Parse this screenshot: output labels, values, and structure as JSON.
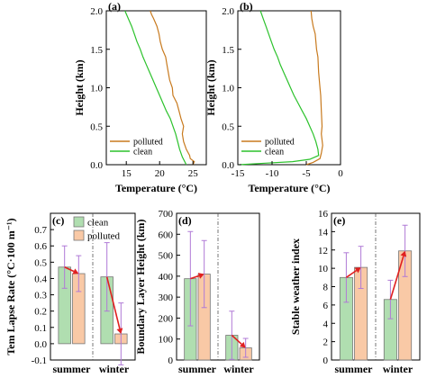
{
  "chart_data": [
    {
      "panel": "(a)",
      "type": "line",
      "xlabel": "Temperature (°C)",
      "ylabel": "Height (km)",
      "xlim": [
        12,
        27
      ],
      "ylim": [
        0,
        2.0
      ],
      "xticks": [
        15,
        20,
        25
      ],
      "yticks": [
        0.0,
        0.5,
        1.0,
        1.5,
        2.0
      ],
      "xtick_labels": [
        "15",
        "20",
        "25"
      ],
      "ytick_labels": [
        "0.0",
        "0.5",
        "1.0",
        "1.5",
        "2.0"
      ],
      "legend": "bottom-left",
      "series": [
        {
          "name": "polluted",
          "color": "#c87a1e",
          "points": [
            [
              25.0,
              0.0
            ],
            [
              25.2,
              0.04
            ],
            [
              24.6,
              0.08
            ],
            [
              24.5,
              0.12
            ],
            [
              24.0,
              0.2
            ],
            [
              23.6,
              0.3
            ],
            [
              23.4,
              0.4
            ],
            [
              23.6,
              0.5
            ],
            [
              23.2,
              0.6
            ],
            [
              22.9,
              0.7
            ],
            [
              22.6,
              0.8
            ],
            [
              22.0,
              0.9
            ],
            [
              21.9,
              1.0
            ],
            [
              21.5,
              1.1
            ],
            [
              21.3,
              1.2
            ],
            [
              21.1,
              1.3
            ],
            [
              20.9,
              1.4
            ],
            [
              20.4,
              1.5
            ],
            [
              20.1,
              1.6
            ],
            [
              19.9,
              1.7
            ],
            [
              19.6,
              1.8
            ],
            [
              19.1,
              1.9
            ],
            [
              18.8,
              1.95
            ],
            [
              18.6,
              2.0
            ]
          ]
        },
        {
          "name": "clean",
          "color": "#2cc22c",
          "points": [
            [
              24.0,
              0.0
            ],
            [
              23.7,
              0.05
            ],
            [
              23.4,
              0.1
            ],
            [
              23.0,
              0.2
            ],
            [
              22.7,
              0.3
            ],
            [
              22.4,
              0.4
            ],
            [
              22.0,
              0.5
            ],
            [
              21.6,
              0.6
            ],
            [
              21.0,
              0.7
            ],
            [
              20.5,
              0.8
            ],
            [
              20.0,
              0.9
            ],
            [
              19.5,
              1.0
            ],
            [
              19.0,
              1.1
            ],
            [
              18.5,
              1.2
            ],
            [
              18.0,
              1.3
            ],
            [
              17.5,
              1.4
            ],
            [
              17.1,
              1.5
            ],
            [
              16.6,
              1.6
            ],
            [
              16.2,
              1.7
            ],
            [
              15.8,
              1.8
            ],
            [
              15.3,
              1.9
            ],
            [
              14.8,
              2.0
            ]
          ]
        }
      ]
    },
    {
      "panel": "(b)",
      "type": "line",
      "xlabel": "Temperature (°C)",
      "ylabel": "Height (km)",
      "xlim": [
        -15,
        0
      ],
      "ylim": [
        0,
        2.0
      ],
      "xticks": [
        -15,
        -10,
        -5,
        0
      ],
      "yticks": [
        0.0,
        0.5,
        1.0,
        1.5,
        2.0
      ],
      "xtick_labels": [
        "-15",
        "-10",
        "-5",
        "0"
      ],
      "ytick_labels": [
        "0.0",
        "0.5",
        "1.0",
        "1.5",
        "2.0"
      ],
      "legend": "bottom-left",
      "series": [
        {
          "name": "polluted",
          "color": "#c87a1e",
          "points": [
            [
              -5.0,
              0.0
            ],
            [
              -4.0,
              0.03
            ],
            [
              -3.0,
              0.08
            ],
            [
              -2.8,
              0.15
            ],
            [
              -2.6,
              0.25
            ],
            [
              -2.8,
              0.4
            ],
            [
              -2.7,
              0.5
            ],
            [
              -2.8,
              0.7
            ],
            [
              -2.9,
              0.9
            ],
            [
              -3.0,
              1.0
            ],
            [
              -3.2,
              1.2
            ],
            [
              -3.3,
              1.4
            ],
            [
              -3.5,
              1.5
            ],
            [
              -3.7,
              1.7
            ],
            [
              -4.0,
              1.8
            ],
            [
              -4.2,
              1.9
            ],
            [
              -4.3,
              2.0
            ]
          ]
        },
        {
          "name": "clean",
          "color": "#2cc22c",
          "points": [
            [
              -14.8,
              0.0
            ],
            [
              -11.0,
              0.02
            ],
            [
              -7.0,
              0.04
            ],
            [
              -4.5,
              0.07
            ],
            [
              -3.2,
              0.12
            ],
            [
              -3.3,
              0.2
            ],
            [
              -3.6,
              0.3
            ],
            [
              -4.0,
              0.4
            ],
            [
              -4.5,
              0.5
            ],
            [
              -5.0,
              0.6
            ],
            [
              -5.6,
              0.7
            ],
            [
              -6.2,
              0.8
            ],
            [
              -6.8,
              0.9
            ],
            [
              -7.3,
              1.0
            ],
            [
              -7.8,
              1.1
            ],
            [
              -8.3,
              1.2
            ],
            [
              -8.8,
              1.3
            ],
            [
              -9.2,
              1.4
            ],
            [
              -9.7,
              1.5
            ],
            [
              -10.1,
              1.6
            ],
            [
              -10.5,
              1.7
            ],
            [
              -10.9,
              1.8
            ],
            [
              -11.3,
              1.9
            ],
            [
              -11.7,
              2.0
            ]
          ]
        }
      ]
    },
    {
      "panel": "(c)",
      "type": "bar",
      "ylabel": "Tem Lapse Rate (°C·100 m⁻¹)",
      "ylim": [
        -0.1,
        0.8
      ],
      "yticks": [
        -0.1,
        0.0,
        0.1,
        0.2,
        0.3,
        0.4,
        0.5,
        0.6,
        0.7
      ],
      "ytick_labels": [
        "-0.1",
        "0.0",
        "0.1",
        "0.2",
        "0.3",
        "0.4",
        "0.5",
        "0.6",
        "0.7"
      ],
      "categories": [
        "summer",
        "winter"
      ],
      "legend": "top-left",
      "series": [
        {
          "name": "clean",
          "color": "#b0deb0",
          "values": [
            0.47,
            0.41
          ],
          "errors": [
            0.13,
            0.21
          ]
        },
        {
          "name": "polluted",
          "color": "#f9c9a6",
          "values": [
            0.43,
            0.06
          ],
          "errors": [
            0.11,
            0.19
          ]
        }
      ]
    },
    {
      "panel": "(d)",
      "type": "bar",
      "ylabel": "Boundary Layer Height (km)",
      "ylim": [
        0,
        700
      ],
      "yticks": [
        0,
        100,
        200,
        300,
        400,
        500,
        600,
        700
      ],
      "ytick_labels": [
        "0",
        "100",
        "200",
        "300",
        "400",
        "500",
        "600",
        "700"
      ],
      "categories": [
        "summer",
        "winter"
      ],
      "series": [
        {
          "name": "clean",
          "color": "#b0deb0",
          "values": [
            388,
            118
          ],
          "errors": [
            225,
            115
          ]
        },
        {
          "name": "polluted",
          "color": "#f9c9a6",
          "values": [
            410,
            58
          ],
          "errors": [
            160,
            45
          ]
        }
      ]
    },
    {
      "panel": "(e)",
      "type": "bar",
      "ylabel": "Stable weather index",
      "ylim": [
        0,
        16
      ],
      "yticks": [
        0,
        2,
        4,
        6,
        8,
        10,
        12,
        14,
        16
      ],
      "ytick_labels": [
        "0",
        "2",
        "4",
        "6",
        "8",
        "10",
        "12",
        "14",
        "16"
      ],
      "categories": [
        "summer",
        "winter"
      ],
      "series": [
        {
          "name": "clean",
          "color": "#b0deb0",
          "values": [
            9.0,
            6.6
          ],
          "errors": [
            2.7,
            2.1
          ]
        },
        {
          "name": "polluted",
          "color": "#f9c9a6",
          "values": [
            10.1,
            11.9
          ],
          "errors": [
            2.3,
            2.8
          ]
        }
      ]
    }
  ]
}
